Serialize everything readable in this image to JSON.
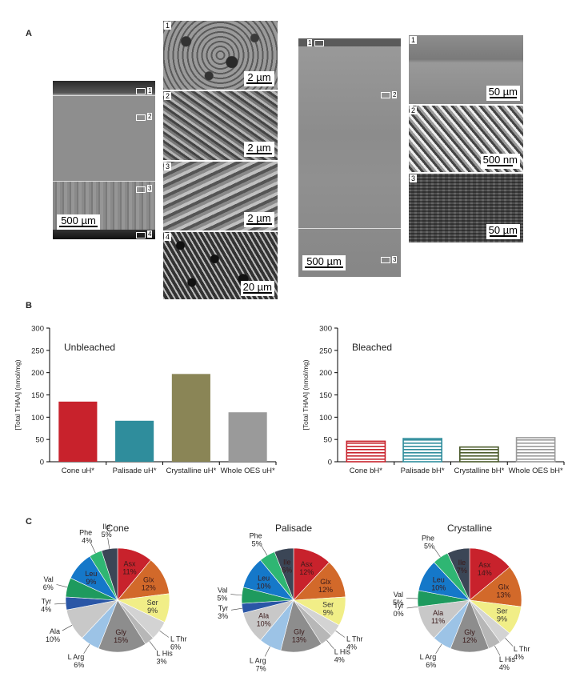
{
  "panel_labels": {
    "a": "A",
    "b": "B",
    "c": "C"
  },
  "sem_left": {
    "scale": "500 µm",
    "markers": [
      "1",
      "2",
      "3",
      "4"
    ],
    "zooms": [
      {
        "num": "1",
        "scale": "2 µm"
      },
      {
        "num": "2",
        "scale": "2 µm"
      },
      {
        "num": "3",
        "scale": "2 µm"
      },
      {
        "num": "4",
        "scale": "20 µm"
      }
    ]
  },
  "sem_right": {
    "scale": "500 µm",
    "markers": [
      "1",
      "2",
      "3"
    ],
    "zooms": [
      {
        "num": "1",
        "scale": "50 µm"
      },
      {
        "num": "2",
        "scale": "500 nm"
      },
      {
        "num": "3",
        "scale": "50 µm"
      }
    ]
  },
  "chart_data": [
    {
      "type": "bar",
      "title": "Unbleached",
      "ylabel": "[Total THAA] (nmol/mg)",
      "ylim": [
        0,
        300
      ],
      "yticks": [
        0,
        50,
        100,
        150,
        200,
        250,
        300
      ],
      "categories": [
        "Cone uH*",
        "Palisade uH*",
        "Crystalline uH*",
        "Whole OES uH*"
      ],
      "values": [
        135,
        92,
        197,
        111
      ],
      "colors": [
        "#c8222c",
        "#2f8d9c",
        "#8a8556",
        "#9a9a9a"
      ]
    },
    {
      "type": "bar",
      "title": "Bleached",
      "ylabel": "[Total THAA] (nmol/mg)",
      "ylim": [
        0,
        300
      ],
      "yticks": [
        0,
        50,
        100,
        150,
        200,
        250,
        300
      ],
      "categories": [
        "Cone bH*",
        "Palisade bH*",
        "Crystalline bH*",
        "Whole OES bH*"
      ],
      "values": [
        46,
        52,
        33,
        54
      ],
      "colors": [
        "#c8222c",
        "#2f8d9c",
        "#4a5a2a",
        "#9a9a9a"
      ]
    },
    {
      "type": "pie",
      "title": "Cone",
      "slices": [
        {
          "label": "Asx",
          "value": 11,
          "text": "11%",
          "inside": true
        },
        {
          "label": "Glx",
          "value": 12,
          "text": "12%",
          "inside": true
        },
        {
          "label": "Ser",
          "value": 9,
          "text": "9%",
          "inside": true
        },
        {
          "label": "L Thr",
          "value": 6,
          "text": "6%",
          "inside": false
        },
        {
          "label": "L His",
          "value": 3,
          "text": "3%",
          "inside": false
        },
        {
          "label": "Gly",
          "value": 15,
          "text": "15%",
          "inside": true
        },
        {
          "label": "L Arg",
          "value": 6,
          "text": "6%",
          "inside": false
        },
        {
          "label": "Ala",
          "value": 10,
          "text": "10%",
          "inside": false
        },
        {
          "label": "Tyr",
          "value": 4,
          "text": "4%",
          "inside": false
        },
        {
          "label": "Val",
          "value": 6,
          "text": "6%",
          "inside": false
        },
        {
          "label": "Leu",
          "value": 9,
          "text": "9%",
          "inside": true
        },
        {
          "label": "Phe",
          "value": 4,
          "text": "4%",
          "inside": false
        },
        {
          "label": "Ile",
          "value": 5,
          "text": "5%",
          "inside": false
        }
      ]
    },
    {
      "type": "pie",
      "title": "Palisade",
      "slices": [
        {
          "label": "Asx",
          "value": 12,
          "text": "12%",
          "inside": true
        },
        {
          "label": "Glx",
          "value": 12,
          "text": "12%",
          "inside": true
        },
        {
          "label": "Ser",
          "value": 9,
          "text": "9%",
          "inside": true
        },
        {
          "label": "L Thr",
          "value": 4,
          "text": "4%",
          "inside": false
        },
        {
          "label": "L His",
          "value": 4,
          "text": "4%",
          "inside": false
        },
        {
          "label": "Gly",
          "value": 13,
          "text": "13%",
          "inside": true
        },
        {
          "label": "L Arg",
          "value": 7,
          "text": "7%",
          "inside": false
        },
        {
          "label": "Ala",
          "value": 10,
          "text": "10%",
          "inside": true
        },
        {
          "label": "Tyr",
          "value": 3,
          "text": "3%",
          "inside": false
        },
        {
          "label": "Val",
          "value": 5,
          "text": "5%",
          "inside": false
        },
        {
          "label": "Leu",
          "value": 10,
          "text": "10%",
          "inside": true
        },
        {
          "label": "Phe",
          "value": 5,
          "text": "5%",
          "inside": false
        },
        {
          "label": "Ile",
          "value": 6,
          "text": "6%",
          "inside": true
        }
      ]
    },
    {
      "type": "pie",
      "title": "Crystalline",
      "slices": [
        {
          "label": "Asx",
          "value": 14,
          "text": "14%",
          "inside": true
        },
        {
          "label": "Glx",
          "value": 13,
          "text": "13%",
          "inside": true
        },
        {
          "label": "Ser",
          "value": 9,
          "text": "9%",
          "inside": true
        },
        {
          "label": "L Thr",
          "value": 4,
          "text": "4%",
          "inside": false
        },
        {
          "label": "L His",
          "value": 4,
          "text": "4%",
          "inside": false
        },
        {
          "label": "Gly",
          "value": 12,
          "text": "12%",
          "inside": true
        },
        {
          "label": "L Arg",
          "value": 6,
          "text": "6%",
          "inside": false
        },
        {
          "label": "Ala",
          "value": 11,
          "text": "11%",
          "inside": true
        },
        {
          "label": "Tyr",
          "value": 0,
          "text": "0%",
          "inside": false
        },
        {
          "label": "Val",
          "value": 5,
          "text": "5%",
          "inside": false
        },
        {
          "label": "Leu",
          "value": 10,
          "text": "10%",
          "inside": true
        },
        {
          "label": "Phe",
          "value": 5,
          "text": "5%",
          "inside": false
        },
        {
          "label": "Ile",
          "value": 7,
          "text": "7%",
          "inside": true
        }
      ]
    }
  ],
  "pie_colors": {
    "Asx": "#c8222c",
    "Glx": "#d2692a",
    "Ser": "#f1ee87",
    "L Thr": "#d3d3d3",
    "L His": "#b7b7b7",
    "Gly": "#8d8d8d",
    "L Arg": "#9cc3e6",
    "Ala": "#c8c8c8",
    "Tyr": "#2a56a6",
    "Val": "#1e9a5e",
    "Leu": "#1578c9",
    "Phe": "#2fb673",
    "Ile": "#3b4656"
  }
}
